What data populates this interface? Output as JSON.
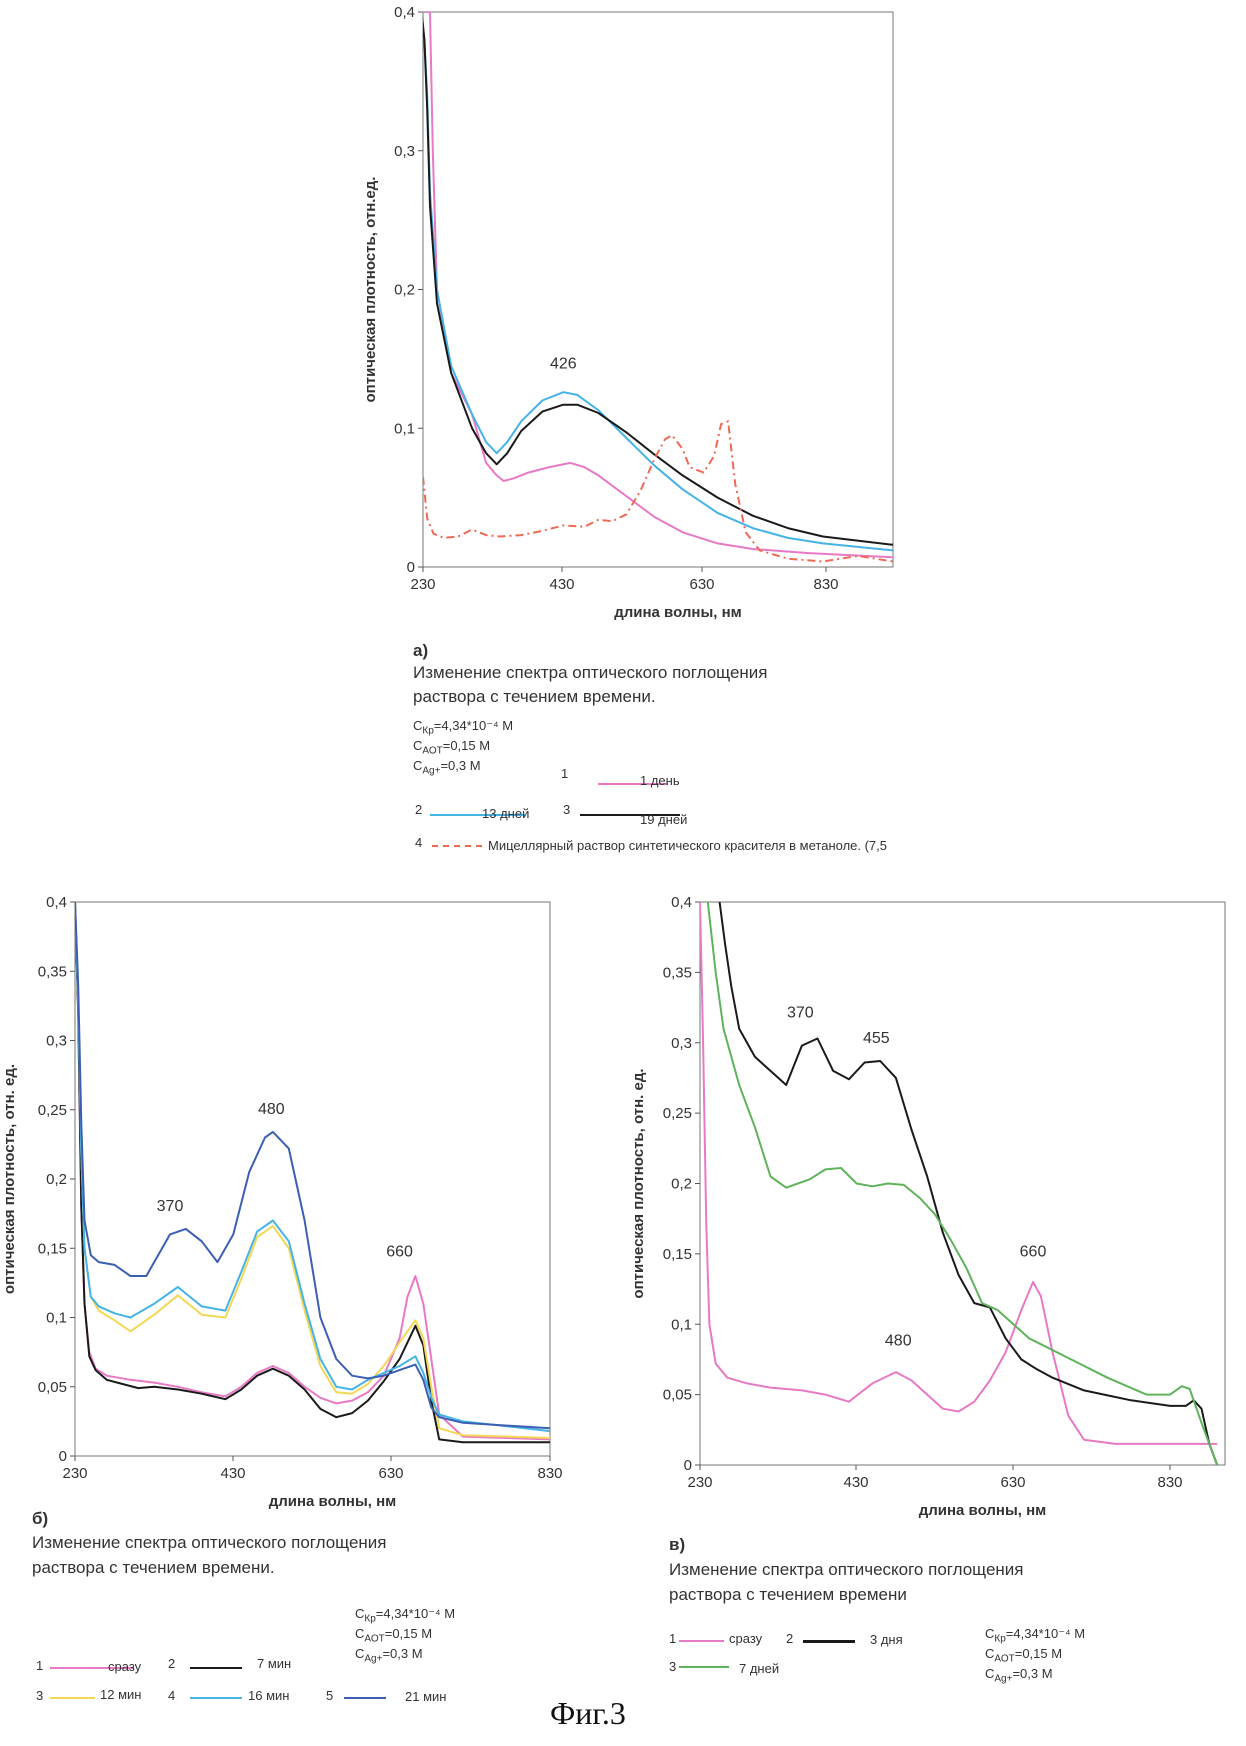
{
  "figure_label": "Фиг.3",
  "panels": {
    "a": {
      "letter": "а)",
      "caption_line1": "Изменение спектра оптического поглощения",
      "caption_line2": "раствора с течением времени.",
      "cond1": "C_Кр=4,34*10⁻⁴ М",
      "cond2": "C_АОТ=0,15 М",
      "cond3": "C_Ag+=0,3 М",
      "legend": [
        {
          "num": "1",
          "label": "1 день"
        },
        {
          "num": "2",
          "label": "13 дней"
        },
        {
          "num": "3",
          "label": "19 дней"
        },
        {
          "num": "4",
          "label": "Мицеллярный раствор синтетического красителя в метаноле. (7,5"
        }
      ]
    },
    "b": {
      "letter": "б)",
      "caption_line1": "Изменение спектра оптического поглощения",
      "caption_line2": "раствора с течением времени.",
      "cond1": "C_Кр=4,34*10⁻⁴ М",
      "cond2": "C_АОТ=0,15 М",
      "cond3": "C_Ag+=0,3 М",
      "legend": [
        {
          "num": "1",
          "label": "сразу"
        },
        {
          "num": "2",
          "label": "7 мин"
        },
        {
          "num": "3",
          "label": "12 мин"
        },
        {
          "num": "4",
          "label": "16 мин"
        },
        {
          "num": "5",
          "label": "21 мин"
        }
      ]
    },
    "c": {
      "letter": "в)",
      "caption_line1": "Изменение спектра оптического поглощения",
      "caption_line2": "раствора с течением времени",
      "cond1": "C_Кр=4,34*10⁻⁴ М",
      "cond2": "C_АОТ=0,15 М",
      "cond3": "C_Ag+=0,3 М",
      "legend": [
        {
          "num": "1",
          "label": "сразу"
        },
        {
          "num": "2",
          "label": "3 дня"
        },
        {
          "num": "3",
          "label": "7 дней"
        }
      ]
    }
  },
  "chart_data": [
    {
      "id": "a",
      "type": "line",
      "xlabel": "длина волны, нм",
      "ylabel": "оптическая плотность, отн.ед.",
      "xlim": [
        230,
        900
      ],
      "ylim": [
        0,
        0.4
      ],
      "xticks": [
        "230",
        "430",
        "630",
        "830"
      ],
      "yticks": [
        "0",
        "0,1",
        "0,2",
        "0,3",
        "0,4"
      ],
      "annotations": [
        {
          "text": "426",
          "x": 430,
          "y": 0.143
        }
      ],
      "series": [
        {
          "name": "1 день",
          "color": "#e879c5",
          "dash": "",
          "x": [
            228,
            232,
            236,
            240,
            244,
            250,
            270,
            300,
            320,
            335,
            345,
            360,
            380,
            410,
            440,
            460,
            480,
            520,
            560,
            600,
            650,
            700,
            780,
            900
          ],
          "y": [
            0.4,
            0.4,
            0.4,
            0.4,
            0.3,
            0.2,
            0.14,
            0.11,
            0.075,
            0.066,
            0.062,
            0.064,
            0.068,
            0.072,
            0.075,
            0.072,
            0.066,
            0.051,
            0.036,
            0.025,
            0.017,
            0.013,
            0.01,
            0.007
          ]
        },
        {
          "name": "13 дней",
          "color": "#46b3e6",
          "dash": "",
          "x": [
            228,
            232,
            236,
            240,
            250,
            270,
            300,
            320,
            335,
            350,
            370,
            400,
            430,
            450,
            480,
            520,
            560,
            600,
            650,
            700,
            750,
            800,
            900
          ],
          "y": [
            0.4,
            0.38,
            0.34,
            0.27,
            0.2,
            0.145,
            0.11,
            0.09,
            0.082,
            0.09,
            0.105,
            0.12,
            0.126,
            0.124,
            0.113,
            0.093,
            0.073,
            0.056,
            0.039,
            0.028,
            0.021,
            0.017,
            0.012
          ]
        },
        {
          "name": "19 дней",
          "color": "#1a1a1a",
          "dash": "",
          "x": [
            228,
            232,
            236,
            240,
            250,
            270,
            300,
            320,
            335,
            350,
            370,
            400,
            430,
            450,
            480,
            520,
            560,
            600,
            650,
            700,
            750,
            800,
            900
          ],
          "y": [
            0.4,
            0.38,
            0.33,
            0.26,
            0.19,
            0.14,
            0.1,
            0.082,
            0.074,
            0.082,
            0.098,
            0.112,
            0.117,
            0.117,
            0.111,
            0.097,
            0.081,
            0.066,
            0.05,
            0.037,
            0.028,
            0.022,
            0.016
          ]
        },
        {
          "name": "Мицеллярный раствор синтетического красителя в метаноле. (7,5",
          "color": "#ee6a55",
          "dash": "8,4,2,4",
          "x": [
            230,
            236,
            245,
            260,
            280,
            300,
            320,
            340,
            370,
            400,
            430,
            460,
            480,
            500,
            520,
            540,
            560,
            575,
            585,
            600,
            610,
            630,
            645,
            655,
            665,
            675,
            690,
            710,
            750,
            800,
            850,
            900
          ],
          "y": [
            0.065,
            0.035,
            0.024,
            0.021,
            0.022,
            0.027,
            0.023,
            0.022,
            0.023,
            0.026,
            0.03,
            0.029,
            0.034,
            0.033,
            0.038,
            0.055,
            0.078,
            0.092,
            0.095,
            0.085,
            0.072,
            0.068,
            0.08,
            0.103,
            0.105,
            0.06,
            0.025,
            0.012,
            0.006,
            0.004,
            0.008,
            0.004
          ]
        }
      ]
    },
    {
      "id": "b",
      "type": "line",
      "xlabel": "длина волны, нм",
      "ylabel": "оптическая плотность, отн. ед.",
      "xlim": [
        230,
        830
      ],
      "ylim": [
        0,
        0.4
      ],
      "xticks": [
        "230",
        "430",
        "630",
        "830"
      ],
      "yticks": [
        "0",
        "0,05",
        "0,1",
        "0,15",
        "0,2",
        "0,25",
        "0,3",
        "0,35",
        "0,4"
      ],
      "annotations": [
        {
          "text": "480",
          "x": 478,
          "y": 0.247
        },
        {
          "text": "370",
          "x": 350,
          "y": 0.177
        },
        {
          "text": "660",
          "x": 640,
          "y": 0.144
        }
      ],
      "series": [
        {
          "name": "сразу",
          "color": "#e879c5",
          "dash": "",
          "x": [
            230,
            234,
            238,
            242,
            248,
            256,
            270,
            300,
            330,
            360,
            390,
            420,
            440,
            460,
            480,
            500,
            520,
            540,
            560,
            580,
            600,
            620,
            640,
            650,
            660,
            670,
            680,
            690,
            720,
            830
          ],
          "y": [
            0.4,
            0.32,
            0.18,
            0.11,
            0.075,
            0.063,
            0.058,
            0.055,
            0.053,
            0.05,
            0.046,
            0.043,
            0.05,
            0.06,
            0.065,
            0.06,
            0.05,
            0.042,
            0.038,
            0.04,
            0.046,
            0.058,
            0.085,
            0.115,
            0.13,
            0.11,
            0.07,
            0.03,
            0.014,
            0.012
          ]
        },
        {
          "name": "7 мин",
          "color": "#1a1a1a",
          "dash": "",
          "x": [
            230,
            234,
            238,
            242,
            248,
            256,
            270,
            290,
            310,
            330,
            360,
            390,
            420,
            440,
            460,
            480,
            500,
            520,
            540,
            560,
            580,
            600,
            620,
            640,
            660,
            670,
            680,
            690,
            720,
            830
          ],
          "y": [
            0.4,
            0.32,
            0.18,
            0.11,
            0.072,
            0.062,
            0.055,
            0.052,
            0.049,
            0.05,
            0.048,
            0.045,
            0.041,
            0.048,
            0.058,
            0.063,
            0.058,
            0.048,
            0.034,
            0.028,
            0.031,
            0.04,
            0.054,
            0.07,
            0.094,
            0.08,
            0.04,
            0.012,
            0.01,
            0.01
          ]
        },
        {
          "name": "12 мин",
          "color": "#f3d855",
          "dash": "",
          "x": [
            230,
            234,
            238,
            242,
            250,
            260,
            280,
            300,
            330,
            360,
            390,
            420,
            440,
            460,
            480,
            500,
            520,
            540,
            560,
            580,
            600,
            620,
            640,
            660,
            670,
            680,
            690,
            720,
            830
          ],
          "y": [
            0.4,
            0.33,
            0.22,
            0.15,
            0.115,
            0.105,
            0.098,
            0.09,
            0.102,
            0.116,
            0.102,
            0.1,
            0.128,
            0.158,
            0.166,
            0.15,
            0.105,
            0.065,
            0.046,
            0.045,
            0.052,
            0.065,
            0.082,
            0.098,
            0.085,
            0.05,
            0.02,
            0.015,
            0.013
          ]
        },
        {
          "name": "16 мин",
          "color": "#46b3e6",
          "dash": "",
          "x": [
            230,
            234,
            238,
            242,
            250,
            260,
            280,
            300,
            330,
            360,
            390,
            420,
            440,
            460,
            480,
            500,
            520,
            540,
            560,
            580,
            600,
            620,
            640,
            660,
            670,
            680,
            690,
            720,
            830
          ],
          "y": [
            0.4,
            0.33,
            0.22,
            0.15,
            0.115,
            0.108,
            0.103,
            0.1,
            0.11,
            0.122,
            0.108,
            0.105,
            0.133,
            0.162,
            0.17,
            0.155,
            0.11,
            0.07,
            0.05,
            0.048,
            0.055,
            0.06,
            0.065,
            0.072,
            0.06,
            0.042,
            0.03,
            0.025,
            0.018
          ]
        },
        {
          "name": "21 мин",
          "color": "#3c5fb3",
          "dash": "",
          "x": [
            230,
            234,
            238,
            242,
            250,
            260,
            280,
            300,
            320,
            350,
            370,
            390,
            410,
            430,
            450,
            470,
            480,
            500,
            520,
            540,
            560,
            580,
            600,
            620,
            640,
            660,
            670,
            680,
            690,
            720,
            830
          ],
          "y": [
            0.4,
            0.34,
            0.24,
            0.17,
            0.145,
            0.14,
            0.138,
            0.13,
            0.13,
            0.16,
            0.164,
            0.155,
            0.14,
            0.16,
            0.205,
            0.23,
            0.234,
            0.222,
            0.17,
            0.1,
            0.07,
            0.058,
            0.056,
            0.058,
            0.062,
            0.066,
            0.055,
            0.035,
            0.028,
            0.024,
            0.02
          ]
        }
      ]
    },
    {
      "id": "c",
      "type": "line",
      "xlabel": "длина волны, нм",
      "ylabel": "оптическая плотность, отн. ед.",
      "xlim": [
        230,
        900
      ],
      "ylim": [
        0,
        0.4
      ],
      "xticks": [
        "230",
        "430",
        "630",
        "830"
      ],
      "yticks": [
        "0",
        "0,05",
        "0,1",
        "0,15",
        "0,2",
        "0,25",
        "0,3",
        "0,35",
        "0,4"
      ],
      "annotations": [
        {
          "text": "370",
          "x": 358,
          "y": 0.318
        },
        {
          "text": "455",
          "x": 455,
          "y": 0.3
        },
        {
          "text": "660",
          "x": 655,
          "y": 0.148
        },
        {
          "text": "480",
          "x": 483,
          "y": 0.085
        }
      ],
      "series": [
        {
          "name": "сразу",
          "color": "#e879c5",
          "dash": "",
          "x": [
            230,
            234,
            238,
            242,
            250,
            265,
            290,
            320,
            360,
            390,
            420,
            450,
            480,
            500,
            520,
            540,
            560,
            580,
            600,
            620,
            640,
            655,
            665,
            680,
            700,
            720,
            760,
            830,
            890
          ],
          "y": [
            0.4,
            0.3,
            0.17,
            0.1,
            0.072,
            0.062,
            0.058,
            0.055,
            0.053,
            0.05,
            0.045,
            0.058,
            0.066,
            0.06,
            0.05,
            0.04,
            0.038,
            0.045,
            0.06,
            0.08,
            0.11,
            0.13,
            0.12,
            0.08,
            0.035,
            0.018,
            0.015,
            0.015,
            0.015
          ]
        },
        {
          "name": "3 дня",
          "color": "#1a1a1a",
          "dash": "",
          "x": [
            255,
            262,
            270,
            280,
            300,
            320,
            340,
            360,
            380,
            400,
            420,
            440,
            460,
            480,
            500,
            520,
            540,
            560,
            580,
            600,
            620,
            640,
            660,
            680,
            720,
            780,
            830,
            850,
            860,
            870,
            880,
            890
          ],
          "y": [
            0.4,
            0.37,
            0.34,
            0.31,
            0.29,
            0.28,
            0.27,
            0.298,
            0.303,
            0.28,
            0.274,
            0.286,
            0.287,
            0.275,
            0.238,
            0.205,
            0.165,
            0.135,
            0.115,
            0.112,
            0.09,
            0.075,
            0.068,
            0.062,
            0.053,
            0.046,
            0.042,
            0.042,
            0.046,
            0.04,
            0.015,
            0.0
          ]
        },
        {
          "name": "7 дней",
          "color": "#5fb35a",
          "dash": "",
          "x": [
            240,
            250,
            260,
            280,
            300,
            320,
            340,
            370,
            390,
            410,
            430,
            450,
            470,
            490,
            510,
            530,
            550,
            570,
            590,
            610,
            630,
            650,
            700,
            750,
            800,
            830,
            845,
            855,
            870,
            890
          ],
          "y": [
            0.4,
            0.35,
            0.31,
            0.27,
            0.24,
            0.205,
            0.197,
            0.203,
            0.21,
            0.211,
            0.2,
            0.198,
            0.2,
            0.199,
            0.19,
            0.178,
            0.16,
            0.14,
            0.115,
            0.11,
            0.1,
            0.09,
            0.076,
            0.062,
            0.05,
            0.05,
            0.056,
            0.054,
            0.03,
            0.0
          ]
        }
      ]
    }
  ]
}
